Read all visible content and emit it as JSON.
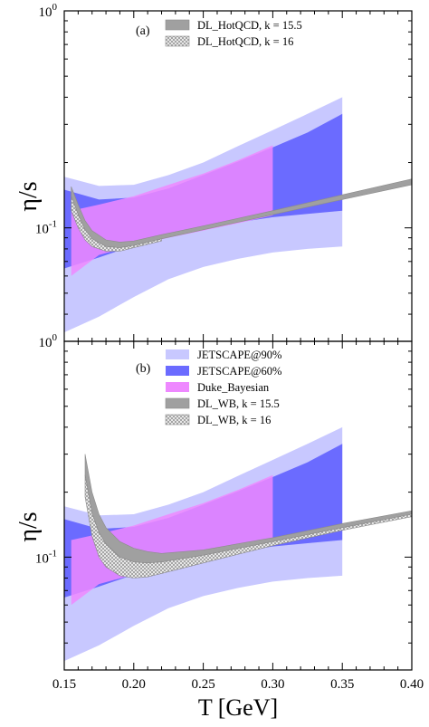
{
  "colors": {
    "jetscape90": "#c8c8ff",
    "jetscape60": "#6b6bff",
    "duke": "#ee88ff",
    "dl_band": "#a0a0a0",
    "dl_hatch": "#8a8a8a"
  },
  "chart_data": [
    {
      "type": "area",
      "panel_label": "(a)",
      "xlim": [
        0.15,
        0.4
      ],
      "ylim": [
        0.03,
        1.0
      ],
      "yscale": "log",
      "ylabel": "η/s",
      "xlabel": "",
      "legend": {
        "position": "top-center",
        "entries": [
          "DL_HotQCD, k = 15.5",
          "DL_HotQCD, k = 16"
        ]
      },
      "series": [
        {
          "name": "",
          "style": "jetscape90",
          "x": [
            0.15,
            0.175,
            0.2,
            0.225,
            0.25,
            0.275,
            0.3,
            0.325,
            0.35
          ],
          "lower": [
            0.033,
            0.039,
            0.048,
            0.058,
            0.066,
            0.072,
            0.077,
            0.08,
            0.082
          ],
          "upper": [
            0.172,
            0.156,
            0.158,
            0.175,
            0.2,
            0.238,
            0.282,
            0.335,
            0.4
          ]
        },
        {
          "name": "",
          "style": "jetscape60",
          "x": [
            0.15,
            0.175,
            0.2,
            0.225,
            0.25,
            0.275,
            0.3,
            0.325,
            0.35
          ],
          "lower": [
            0.065,
            0.073,
            0.083,
            0.092,
            0.1,
            0.106,
            0.112,
            0.116,
            0.12
          ],
          "upper": [
            0.15,
            0.135,
            0.138,
            0.152,
            0.175,
            0.202,
            0.235,
            0.275,
            0.335
          ]
        },
        {
          "name": "",
          "style": "duke",
          "x": [
            0.155,
            0.175,
            0.2,
            0.225,
            0.25,
            0.275,
            0.3
          ],
          "lower": [
            0.06,
            0.075,
            0.083,
            0.09,
            0.097,
            0.105,
            0.114
          ],
          "upper": [
            0.12,
            0.128,
            0.14,
            0.158,
            0.178,
            0.205,
            0.24
          ]
        },
        {
          "name": "DL_HotQCD, k = 15.5",
          "style": "dl_band",
          "x": [
            0.155,
            0.16,
            0.165,
            0.17,
            0.18,
            0.19,
            0.2,
            0.22,
            0.25,
            0.3,
            0.35,
            0.4
          ],
          "lower": [
            0.14,
            0.115,
            0.098,
            0.089,
            0.082,
            0.081,
            0.083,
            0.089,
            0.098,
            0.115,
            0.135,
            0.158
          ],
          "upper": [
            0.155,
            0.128,
            0.108,
            0.097,
            0.088,
            0.086,
            0.087,
            0.093,
            0.102,
            0.12,
            0.142,
            0.168
          ]
        },
        {
          "name": "DL_HotQCD, k = 16",
          "style": "dl_hatch",
          "x": [
            0.155,
            0.16,
            0.165,
            0.17,
            0.18,
            0.19,
            0.2,
            0.22
          ],
          "lower": [
            0.12,
            0.1,
            0.088,
            0.082,
            0.078,
            0.078,
            0.081,
            0.087
          ],
          "upper": [
            0.14,
            0.115,
            0.098,
            0.089,
            0.082,
            0.081,
            0.083,
            0.089
          ]
        }
      ]
    },
    {
      "type": "area",
      "panel_label": "(b)",
      "xlim": [
        0.15,
        0.4
      ],
      "ylim": [
        0.03,
        1.0
      ],
      "yscale": "log",
      "ylabel": "η/s",
      "xlabel": "T [GeV]",
      "xticks": [
        "0.15",
        "0.20",
        "0.25",
        "0.30",
        "0.35",
        "0.40"
      ],
      "legend": {
        "position": "top-center",
        "entries": [
          "JETSCAPE@90%",
          "JETSCAPE@60%",
          "Duke_Bayesian",
          "DL_WB, k = 15.5",
          "DL_WB, k = 16"
        ]
      },
      "series": [
        {
          "name": "JETSCAPE@90%",
          "style": "jetscape90",
          "x": [
            0.15,
            0.175,
            0.2,
            0.225,
            0.25,
            0.275,
            0.3,
            0.325,
            0.35
          ],
          "lower": [
            0.033,
            0.039,
            0.048,
            0.058,
            0.066,
            0.072,
            0.077,
            0.08,
            0.082
          ],
          "upper": [
            0.172,
            0.156,
            0.158,
            0.175,
            0.2,
            0.238,
            0.282,
            0.335,
            0.4
          ]
        },
        {
          "name": "JETSCAPE@60%",
          "style": "jetscape60",
          "x": [
            0.15,
            0.175,
            0.2,
            0.225,
            0.25,
            0.275,
            0.3,
            0.325,
            0.35
          ],
          "lower": [
            0.065,
            0.073,
            0.083,
            0.092,
            0.1,
            0.106,
            0.112,
            0.116,
            0.12
          ],
          "upper": [
            0.15,
            0.135,
            0.138,
            0.152,
            0.175,
            0.202,
            0.235,
            0.275,
            0.335
          ]
        },
        {
          "name": "Duke_Bayesian",
          "style": "duke",
          "x": [
            0.155,
            0.175,
            0.2,
            0.225,
            0.25,
            0.275,
            0.3
          ],
          "lower": [
            0.06,
            0.075,
            0.083,
            0.09,
            0.097,
            0.105,
            0.114
          ],
          "upper": [
            0.12,
            0.128,
            0.14,
            0.158,
            0.178,
            0.205,
            0.24
          ]
        },
        {
          "name": "DL_WB, k = 15.5",
          "style": "dl_band",
          "x": [
            0.165,
            0.17,
            0.175,
            0.18,
            0.19,
            0.2,
            0.21,
            0.22,
            0.25,
            0.3,
            0.35,
            0.4
          ],
          "lower": [
            0.24,
            0.16,
            0.13,
            0.115,
            0.1,
            0.095,
            0.094,
            0.095,
            0.102,
            0.118,
            0.137,
            0.158
          ],
          "upper": [
            0.3,
            0.2,
            0.158,
            0.137,
            0.118,
            0.11,
            0.106,
            0.104,
            0.108,
            0.123,
            0.143,
            0.164
          ]
        },
        {
          "name": "DL_WB, k = 16",
          "style": "dl_hatch",
          "x": [
            0.165,
            0.17,
            0.175,
            0.18,
            0.19,
            0.2,
            0.21,
            0.22,
            0.25,
            0.3,
            0.35,
            0.4
          ],
          "lower": [
            0.19,
            0.125,
            0.1,
            0.09,
            0.082,
            0.08,
            0.081,
            0.084,
            0.094,
            0.113,
            0.133,
            0.154
          ],
          "upper": [
            0.24,
            0.16,
            0.13,
            0.115,
            0.1,
            0.095,
            0.094,
            0.095,
            0.102,
            0.118,
            0.137,
            0.158
          ]
        }
      ]
    }
  ]
}
